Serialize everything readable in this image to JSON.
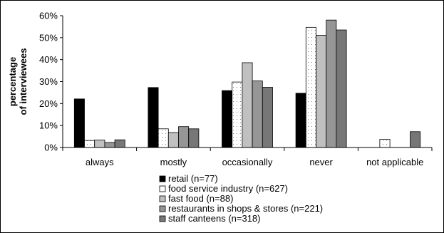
{
  "chart_data": {
    "type": "bar",
    "title": "",
    "xlabel": "",
    "ylabel_lines": [
      "percentage",
      "of interviewees"
    ],
    "ylim": [
      0,
      60
    ],
    "yticks": [
      "0%",
      "10%",
      "20%",
      "30%",
      "40%",
      "50%",
      "60%"
    ],
    "ytick_values": [
      0,
      10,
      20,
      30,
      40,
      50,
      60
    ],
    "grid": false,
    "legend_position": "bottom",
    "categories": [
      "always",
      "mostly",
      "occasionally",
      "never",
      "not applicable"
    ],
    "series": [
      {
        "name": "retail (n=77)",
        "color": "#000000",
        "pattern": "solid",
        "values": [
          22.1,
          27.3,
          25.9,
          24.7,
          0
        ]
      },
      {
        "name": "food service industry (n=627)",
        "color": "#ffffff",
        "pattern": "dots",
        "values": [
          3.2,
          8.5,
          29.8,
          54.7,
          3.7
        ]
      },
      {
        "name": "fast food (n=88)",
        "color": "#c0c0c0",
        "pattern": "solid",
        "values": [
          3.4,
          6.8,
          38.6,
          51.1,
          0
        ]
      },
      {
        "name": "restaurants in shops & stores (n=221)",
        "color": "#969696",
        "pattern": "solid",
        "values": [
          2.3,
          9.5,
          30.3,
          58.0,
          0
        ]
      },
      {
        "name": "staff canteens (n=318)",
        "color": "#777777",
        "pattern": "solid",
        "values": [
          3.5,
          8.5,
          27.4,
          53.5,
          7.2
        ]
      }
    ]
  }
}
